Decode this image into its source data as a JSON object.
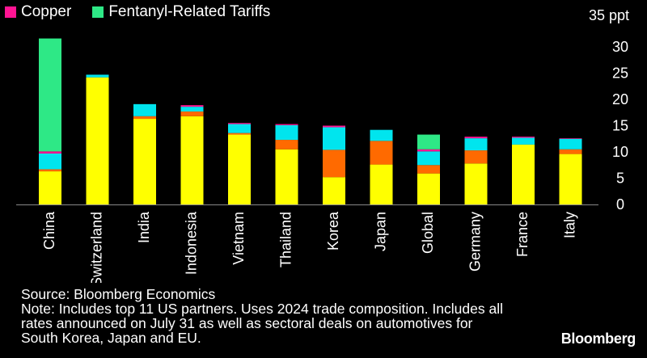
{
  "legend": {
    "items": [
      {
        "label": "Copper",
        "color": "#ff1493"
      },
      {
        "label": "Fentanyl-Related Tariffs",
        "color": "#2ee886"
      }
    ]
  },
  "footer": {
    "source": "Source: Bloomberg Economics",
    "note_lines": [
      "Note: Includes top 11 US partners. Uses 2024 trade composition. Includes all",
      "rates announced on July 31 as well as sectoral deals on automotives for",
      "South Korea, Japan and EU."
    ]
  },
  "brand": "Bloomberg",
  "chart_data": {
    "type": "bar",
    "stacked": true,
    "unit_label": "35 ppt",
    "ylim": [
      0,
      35
    ],
    "yticks": [
      0,
      5,
      10,
      15,
      20,
      25,
      30
    ],
    "categories": [
      "China",
      "Switzerland",
      "India",
      "Indonesia",
      "Vietnam",
      "Thailand",
      "Korea",
      "Japan",
      "Global",
      "Germany",
      "France",
      "Italy"
    ],
    "series": [
      {
        "name": "Yellow component",
        "color": "#ffff00",
        "in_legend": false,
        "values": [
          6.3,
          24.2,
          16.3,
          16.8,
          13.3,
          10.5,
          5.2,
          7.6,
          5.9,
          7.8,
          11.4,
          9.6
        ]
      },
      {
        "name": "Orange component",
        "color": "#ff6a00",
        "in_legend": false,
        "values": [
          0.4,
          0,
          0.5,
          0.9,
          0.3,
          1.8,
          5.2,
          4.5,
          1.6,
          2.5,
          0,
          0.9
        ]
      },
      {
        "name": "Cyan component",
        "color": "#00e5ee",
        "in_legend": false,
        "values": [
          3.0,
          0.5,
          2.3,
          0.9,
          1.7,
          2.8,
          4.3,
          2.1,
          2.6,
          2.3,
          1.3,
          2.0
        ]
      },
      {
        "name": "Copper",
        "color": "#ff1493",
        "in_legend": true,
        "values": [
          0.4,
          0,
          0,
          0.3,
          0.2,
          0.2,
          0.3,
          0,
          0.4,
          0.3,
          0.2,
          0.1
        ]
      },
      {
        "name": "Fentanyl-Related Tariffs",
        "color": "#2ee886",
        "in_legend": true,
        "values": [
          21.5,
          0,
          0,
          0,
          0,
          0,
          0,
          0,
          2.8,
          0,
          0,
          0
        ]
      }
    ]
  }
}
